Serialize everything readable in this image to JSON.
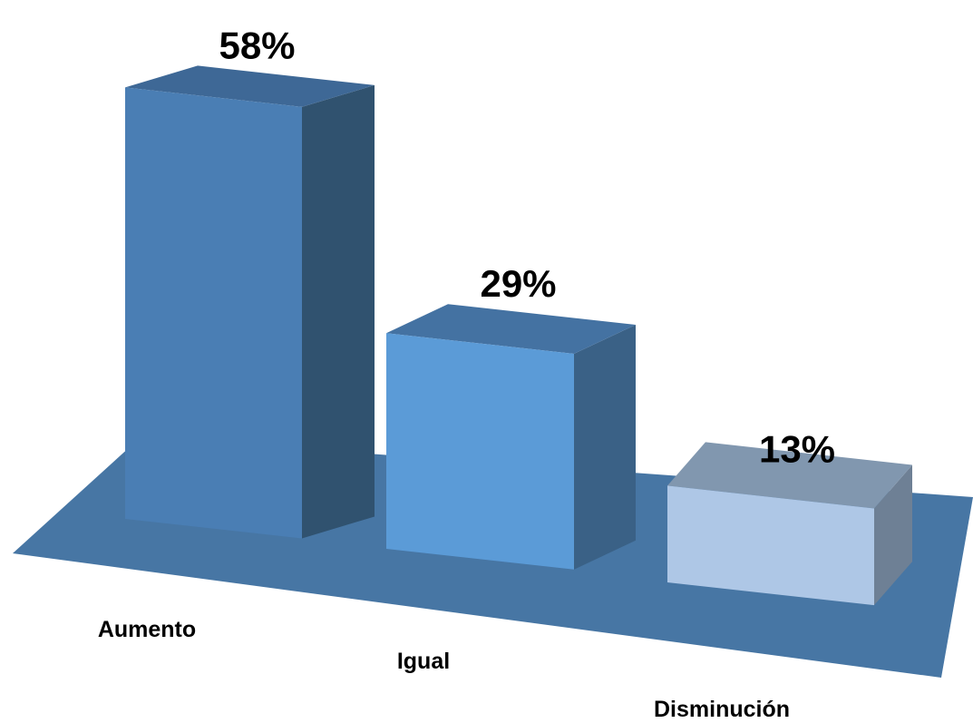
{
  "chart_data": {
    "type": "bar",
    "style": "3d-column",
    "categories": [
      "Aumento",
      "Igual",
      "Disminución"
    ],
    "values": [
      58,
      29,
      13
    ],
    "data_labels": [
      "58%",
      "29%",
      "13%"
    ],
    "unit": "%",
    "ylim": [
      0,
      60
    ],
    "grid": false,
    "legend": "none",
    "colors": {
      "floor": "#4776A4",
      "bars": [
        {
          "front": "#4A7EB4",
          "top": "#3E6896",
          "side": "#30526F"
        },
        {
          "front": "#5B9BD7",
          "top": "#4472A2",
          "side": "#3A6186"
        },
        {
          "front": "#AEC7E6",
          "top": "#8197AF",
          "side": "#6E8095"
        }
      ]
    }
  }
}
